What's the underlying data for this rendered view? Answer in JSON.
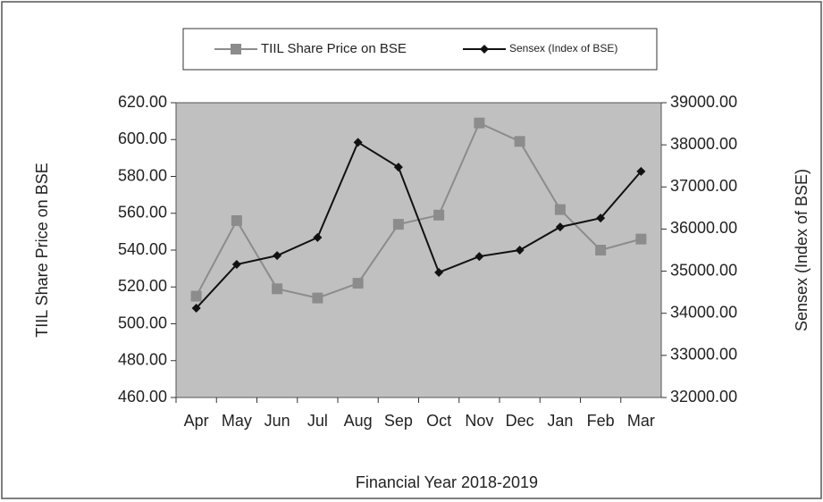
{
  "chart_data": {
    "type": "line",
    "x_label": "Financial Year 2018-2019",
    "y_label": "TIIL Share Price on BSE",
    "y2_label": "Sensex (Index of BSE)",
    "categories": [
      "Apr",
      "May",
      "Jun",
      "Jul",
      "Aug",
      "Sep",
      "Oct",
      "Nov",
      "Dec",
      "Jan",
      "Feb",
      "Mar"
    ],
    "series": [
      {
        "name": "TIIL Share Price on BSE",
        "color": "#8c8c8c",
        "marker": "square",
        "axis": "y",
        "values": [
          515,
          556,
          519,
          514,
          522,
          554,
          559,
          609,
          599,
          562,
          540,
          546
        ]
      },
      {
        "name": "Sensex (Index of BSE)",
        "color": "#111111",
        "marker": "diamond",
        "axis": "y2",
        "values": [
          34120,
          35160,
          35370,
          35800,
          38060,
          37470,
          34970,
          35350,
          35500,
          36050,
          36260,
          37370
        ]
      }
    ],
    "ylim": [
      460,
      620
    ],
    "yticks": [
      {
        "value": 460,
        "label": "460.00"
      },
      {
        "value": 480,
        "label": "480.00"
      },
      {
        "value": 500,
        "label": "500.00"
      },
      {
        "value": 520,
        "label": "520.00"
      },
      {
        "value": 540,
        "label": "540.00"
      },
      {
        "value": 560,
        "label": "560.00"
      },
      {
        "value": 580,
        "label": "580.00"
      },
      {
        "value": 600,
        "label": "600.00"
      },
      {
        "value": 620,
        "label": "620.00"
      }
    ],
    "y2lim": [
      32000,
      39000
    ],
    "y2ticks": [
      {
        "value": 32000,
        "label": "32000.00"
      },
      {
        "value": 33000,
        "label": "33000.00"
      },
      {
        "value": 34000,
        "label": "34000.00"
      },
      {
        "value": 35000,
        "label": "35000.00"
      },
      {
        "value": 36000,
        "label": "36000.00"
      },
      {
        "value": 37000,
        "label": "37000.00"
      },
      {
        "value": 38000,
        "label": "38000.00"
      },
      {
        "value": 39000,
        "label": "39000.00"
      }
    ],
    "plot_background": "#c0c0c0",
    "legend": "top"
  }
}
